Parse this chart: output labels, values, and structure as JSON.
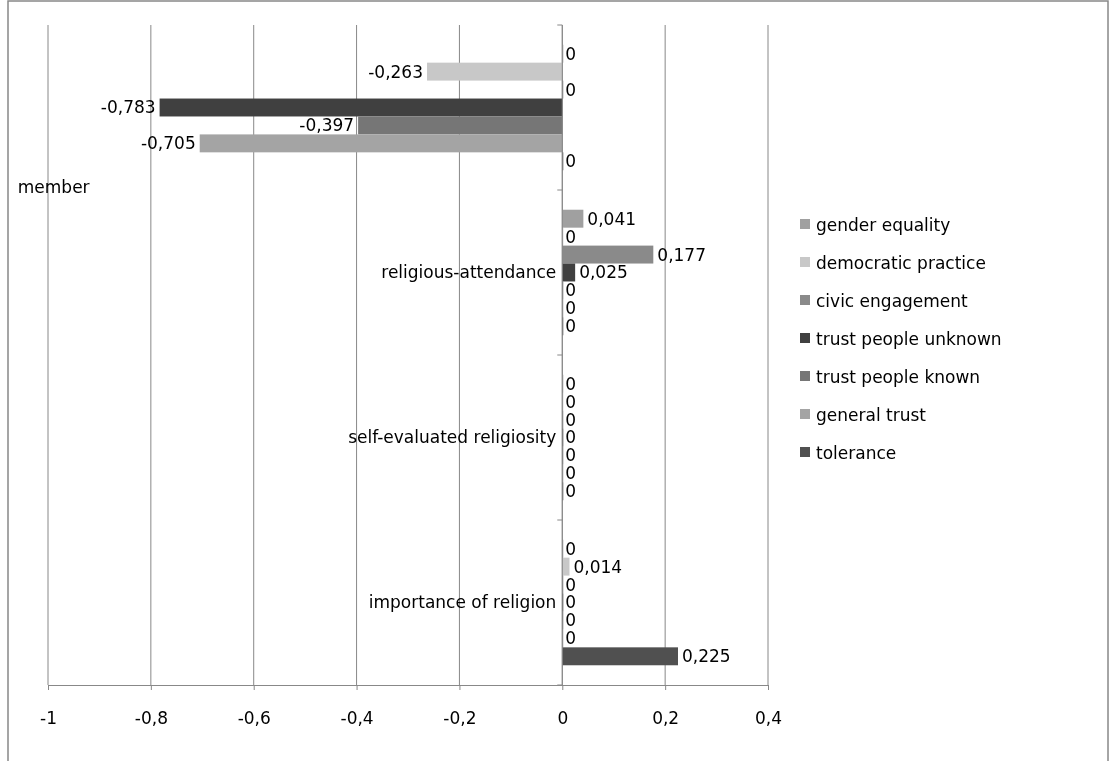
{
  "chart_data": {
    "type": "bar",
    "orientation": "horizontal",
    "categories": [
      "member",
      "religious-attendance",
      "self-evaluated religiosity",
      "importance of religion"
    ],
    "series": [
      {
        "name": "gender equality",
        "color": "#a0a0a0",
        "values": [
          0,
          0.041,
          0,
          0
        ],
        "value_labels": [
          "0",
          "0,041",
          "0",
          "0"
        ]
      },
      {
        "name": "democratic practice",
        "color": "#c8c8c8",
        "values": [
          -0.263,
          0,
          0,
          0.014
        ],
        "value_labels": [
          "-0,263",
          "0",
          "0",
          "0,014"
        ]
      },
      {
        "name": "civic engagement",
        "color": "#8a8a8a",
        "values": [
          0,
          0.177,
          0,
          0
        ],
        "value_labels": [
          "0",
          "0,177",
          "0",
          "0"
        ]
      },
      {
        "name": "trust people unknown",
        "color": "#404040",
        "values": [
          -0.783,
          0.025,
          0,
          0
        ],
        "value_labels": [
          "-0,783",
          "0,025",
          "0",
          "0"
        ]
      },
      {
        "name": "trust people known",
        "color": "#767676",
        "values": [
          -0.397,
          0,
          0,
          0
        ],
        "value_labels": [
          "-0,397",
          "0",
          "0",
          "0"
        ]
      },
      {
        "name": "general trust",
        "color": "#a4a4a4",
        "values": [
          -0.705,
          0,
          0,
          0
        ],
        "value_labels": [
          "-0,705",
          "0",
          "0",
          "0"
        ]
      },
      {
        "name": "tolerance",
        "color": "#505050",
        "values": [
          0,
          0,
          0,
          0.225
        ],
        "value_labels": [
          "0",
          "0",
          "0",
          "0,225"
        ]
      }
    ],
    "xlim": [
      -1,
      0.4
    ],
    "xticks": [
      {
        "value": -1,
        "label": "-1"
      },
      {
        "value": -0.8,
        "label": "-0,8"
      },
      {
        "value": -0.6,
        "label": "-0,6"
      },
      {
        "value": -0.4,
        "label": "-0,4"
      },
      {
        "value": -0.2,
        "label": "-0,2"
      },
      {
        "value": 0,
        "label": "0"
      },
      {
        "value": 0.2,
        "label": "0,2"
      },
      {
        "value": 0.4,
        "label": "0,4"
      }
    ],
    "grid": "x",
    "legend": "right"
  }
}
